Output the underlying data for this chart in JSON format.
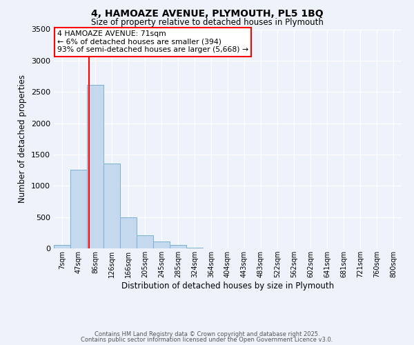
{
  "title_line1": "4, HAMOAZE AVENUE, PLYMOUTH, PL5 1BQ",
  "title_line2": "Size of property relative to detached houses in Plymouth",
  "xlabel": "Distribution of detached houses by size in Plymouth",
  "ylabel": "Number of detached properties",
  "bar_labels": [
    "7sqm",
    "47sqm",
    "86sqm",
    "126sqm",
    "166sqm",
    "205sqm",
    "245sqm",
    "285sqm",
    "324sqm",
    "364sqm",
    "404sqm",
    "443sqm",
    "483sqm",
    "522sqm",
    "562sqm",
    "602sqm",
    "641sqm",
    "681sqm",
    "721sqm",
    "760sqm",
    "800sqm"
  ],
  "bar_values": [
    60,
    1260,
    2610,
    1360,
    500,
    210,
    115,
    50,
    10,
    5,
    2,
    1,
    0,
    0,
    0,
    0,
    0,
    0,
    0,
    0,
    0
  ],
  "bar_color": "#c5d9ee",
  "bar_edge_color": "#7aafd4",
  "property_line_color": "red",
  "property_line_x": 1.62,
  "annotation_title": "4 HAMOAZE AVENUE: 71sqm",
  "annotation_line1": "← 6% of detached houses are smaller (394)",
  "annotation_line2": "93% of semi-detached houses are larger (5,668) →",
  "annotation_box_color": "white",
  "annotation_box_edge": "red",
  "ylim": [
    0,
    3500
  ],
  "yticks": [
    0,
    500,
    1000,
    1500,
    2000,
    2500,
    3000,
    3500
  ],
  "footer_line1": "Contains HM Land Registry data © Crown copyright and database right 2025.",
  "footer_line2": "Contains public sector information licensed under the Open Government Licence v3.0.",
  "background_color": "#eef2fa",
  "grid_color": "#ffffff"
}
